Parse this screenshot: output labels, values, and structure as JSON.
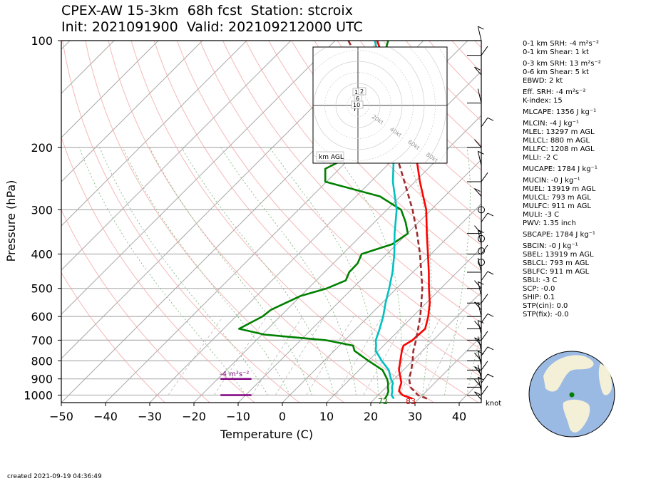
{
  "title_line1": "CPEX-AW 15-3km  68h fcst  Station: stcroix",
  "title_line2": "Init: 2021091900  Valid: 202109212000 UTC",
  "footer": "created 2021-09-19 04:36:49",
  "hodograph_label": "km AGL",
  "knot_label": "knot",
  "srh_label": "-4 m²s⁻²",
  "colors": {
    "temperature": "#ff0000",
    "dewpoint": "#008000",
    "wetbulb": "#00c0c0",
    "parcel": "#9b2d30",
    "srh_bar": "#800080",
    "dry_adiabat": "#f4a6a6",
    "moist_adiabat": "#8fc08f",
    "mixing_ratio": "#bbbbbb",
    "isotherm": "#aaaaaa"
  },
  "indices": [
    "0-1 km SRH: -4 m²s⁻²",
    "0-1 km Shear: 1 kt",
    "0-3 km SRH: 13 m²s⁻²",
    "0-6 km Shear: 5 kt",
    "EBWD: 2 kt",
    "Eff. SRH: -4 m²s⁻²",
    "K-index: 15",
    "MLCAPE: 1356 J kg⁻¹",
    "MLCIN: -4 J kg⁻¹",
    "MLEL: 13297 m AGL",
    "MLLCL: 880 m AGL",
    "MLLFC: 1208 m AGL",
    "MLLI: -2 C",
    "MUCAPE: 1784 J kg⁻¹",
    "MUCIN: -0 J kg⁻¹",
    "MUEL: 13919 m AGL",
    "MULCL: 793 m AGL",
    "MULFC: 911 m AGL",
    "MULI: -3 C",
    "PWV: 1.35 inch",
    "SBCAPE: 1784 J kg⁻¹",
    "SBCIN: -0 J kg⁻¹",
    "SBEL: 13919 m AGL",
    "SBLCL: 793 m AGL",
    "SBLFC: 911 m AGL",
    "SBLI: -3 C",
    "SCP: -0.0",
    "SHIP: 0.1",
    "STP(cin): 0.0",
    "STP(fix): -0.0"
  ],
  "chart_data": {
    "type": "line",
    "subtype": "skew-T log-p",
    "xlabel": "Temperature (C)",
    "ylabel": "Pressure (hPa)",
    "xlim": [
      -50,
      45
    ],
    "ylim": [
      1050,
      100
    ],
    "y_scale": "log",
    "skew": "isotherms slanted 45° to the right",
    "x_ticks": [
      -50,
      -40,
      -30,
      -20,
      -10,
      0,
      10,
      20,
      30,
      40
    ],
    "y_ticks": [
      100,
      200,
      300,
      400,
      500,
      600,
      700,
      800,
      900,
      1000
    ],
    "surface_labels": {
      "dewpoint": "72",
      "temperature": "83"
    },
    "series": [
      {
        "key": "temperature",
        "points": [
          [
            1023,
            28.5
          ],
          [
            1000,
            25.5
          ],
          [
            975,
            23.8
          ],
          [
            950,
            23.1
          ],
          [
            925,
            22.5
          ],
          [
            900,
            21.4
          ],
          [
            850,
            19.0
          ],
          [
            800,
            17.2
          ],
          [
            750,
            15.3
          ],
          [
            725,
            14.5
          ],
          [
            700,
            15.3
          ],
          [
            650,
            15.6
          ],
          [
            600,
            13.5
          ],
          [
            550,
            10.8
          ],
          [
            500,
            7.3
          ],
          [
            450,
            3.6
          ],
          [
            400,
            -0.7
          ],
          [
            350,
            -5.6
          ],
          [
            300,
            -11.1
          ],
          [
            250,
            -18.9
          ],
          [
            200,
            -27.8
          ],
          [
            175,
            -33.5
          ],
          [
            150,
            -40.5
          ],
          [
            125,
            -49.5
          ],
          [
            110,
            -56.0
          ],
          [
            100,
            -60.5
          ]
        ]
      },
      {
        "key": "dewpoint",
        "points": [
          [
            1023,
            22.3
          ],
          [
            1000,
            22.0
          ],
          [
            975,
            21.4
          ],
          [
            950,
            20.4
          ],
          [
            925,
            19.5
          ],
          [
            900,
            18.3
          ],
          [
            850,
            15.3
          ],
          [
            800,
            10.0
          ],
          [
            750,
            4.6
          ],
          [
            725,
            3.1
          ],
          [
            700,
            -4.3
          ],
          [
            675,
            -19.5
          ],
          [
            650,
            -26.5
          ],
          [
            600,
            -24.0
          ],
          [
            575,
            -23.6
          ],
          [
            525,
            -20.0
          ],
          [
            500,
            -15.8
          ],
          [
            475,
            -13.3
          ],
          [
            450,
            -14.4
          ],
          [
            425,
            -14.5
          ],
          [
            400,
            -15.7
          ],
          [
            375,
            -11.0
          ],
          [
            350,
            -9.9
          ],
          [
            325,
            -13.0
          ],
          [
            300,
            -16.8
          ],
          [
            275,
            -24.6
          ],
          [
            250,
            -40.3
          ],
          [
            230,
            -43.2
          ],
          [
            200,
            -38.5
          ],
          [
            175,
            -37.0
          ],
          [
            160,
            -40.5
          ],
          [
            150,
            -44.5
          ],
          [
            130,
            -50.5
          ],
          [
            115,
            -54.5
          ],
          [
            100,
            -58.0
          ]
        ]
      },
      {
        "key": "wetbulb",
        "points": [
          [
            1023,
            24.3
          ],
          [
            1000,
            23.0
          ],
          [
            975,
            22.3
          ],
          [
            950,
            21.3
          ],
          [
            925,
            20.6
          ],
          [
            900,
            19.2
          ],
          [
            850,
            16.7
          ],
          [
            800,
            13.0
          ],
          [
            750,
            9.4
          ],
          [
            725,
            8.3
          ],
          [
            700,
            7.0
          ],
          [
            650,
            5.3
          ],
          [
            600,
            3.3
          ],
          [
            550,
            0.8
          ],
          [
            500,
            -1.7
          ],
          [
            450,
            -4.6
          ],
          [
            400,
            -8.3
          ],
          [
            350,
            -12.9
          ],
          [
            300,
            -17.8
          ],
          [
            250,
            -25.0
          ],
          [
            200,
            -32.5
          ],
          [
            175,
            -37.0
          ],
          [
            150,
            -42.8
          ],
          [
            125,
            -51.0
          ],
          [
            110,
            -57.0
          ],
          [
            100,
            -61.0
          ]
        ]
      },
      {
        "key": "parcel",
        "dashed": true,
        "points": [
          [
            1023,
            31.8
          ],
          [
            1000,
            29.0
          ],
          [
            950,
            25.5
          ],
          [
            900,
            23.3
          ],
          [
            850,
            21.8
          ],
          [
            800,
            20.0
          ],
          [
            750,
            17.9
          ],
          [
            700,
            16.1
          ],
          [
            650,
            14.0
          ],
          [
            600,
            11.7
          ],
          [
            550,
            8.9
          ],
          [
            500,
            5.8
          ],
          [
            450,
            1.9
          ],
          [
            400,
            -2.5
          ],
          [
            350,
            -7.8
          ],
          [
            300,
            -14.2
          ],
          [
            250,
            -22.4
          ],
          [
            200,
            -32.5
          ],
          [
            175,
            -38.8
          ],
          [
            150,
            -46.2
          ],
          [
            125,
            -55.5
          ],
          [
            110,
            -62.0
          ],
          [
            100,
            -67.0
          ]
        ]
      }
    ],
    "hodograph": {
      "rings_kt": [
        20,
        40,
        60,
        80
      ],
      "points_kt": [
        [
          0,
          0
        ],
        [
          1,
          -1
        ],
        [
          2,
          -2
        ],
        [
          3,
          1
        ],
        [
          1,
          3
        ],
        [
          -2,
          3
        ],
        [
          -3,
          -5
        ]
      ],
      "height_labels": [
        "1",
        "2",
        "6",
        "10"
      ]
    },
    "srh_bars": [
      {
        "pressure": 1000,
        "t_left": -14,
        "t_right": -7
      },
      {
        "pressure": 900,
        "t_left": -14,
        "t_right": -7
      }
    ],
    "cloud_markers_hpa": [
      300,
      362,
      392,
      422
    ]
  }
}
